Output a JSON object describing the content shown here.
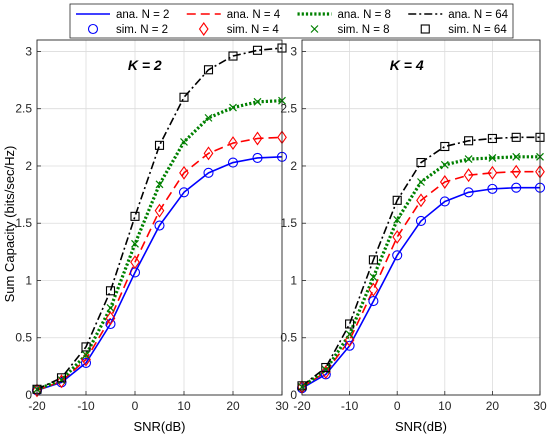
{
  "figure": {
    "ylabel": "Sum Capacity (bits/sec/Hz)",
    "xlabel": "SNR(dB)"
  },
  "legend": {
    "placement": "top-center, spanning both panels",
    "entries": [
      {
        "key": "ana2",
        "label": "ana. N = 2",
        "color": "#0000ff",
        "style": "solid"
      },
      {
        "key": "ana4",
        "label": "ana. N = 4",
        "color": "#ff0000",
        "style": "dashed"
      },
      {
        "key": "ana8",
        "label": "ana. N = 8",
        "color": "#008000",
        "style": "dotted"
      },
      {
        "key": "ana64",
        "label": "ana. N = 64",
        "color": "#000000",
        "style": "dashdot"
      },
      {
        "key": "sim2",
        "label": "sim. N = 2",
        "color": "#0000ff",
        "marker": "circle"
      },
      {
        "key": "sim4",
        "label": "sim. N = 4",
        "color": "#ff0000",
        "marker": "diamond"
      },
      {
        "key": "sim8",
        "label": "sim. N = 8",
        "color": "#008000",
        "marker": "x"
      },
      {
        "key": "sim64",
        "label": "sim. N = 64",
        "color": "#000000",
        "marker": "square"
      }
    ]
  },
  "chart_data": [
    {
      "type": "line",
      "title": "K = 2",
      "xlabel": "SNR(dB)",
      "ylabel": "Sum Capacity (bits/sec/Hz)",
      "xlim": [
        -20,
        30
      ],
      "ylim": [
        0,
        3.1
      ],
      "xticks": [
        "-20",
        "-10",
        "0",
        "10",
        "20",
        "30"
      ],
      "yticks": [
        "0",
        "0.5",
        "1",
        "1.5",
        "2",
        "2.5",
        "3"
      ],
      "grid": true,
      "x": [
        -20,
        -15,
        -10,
        -5,
        0,
        5,
        10,
        15,
        20,
        25,
        30
      ],
      "series": [
        {
          "name": "ana. N = 2",
          "values": [
            0.04,
            0.11,
            0.28,
            0.62,
            1.07,
            1.48,
            1.77,
            1.94,
            2.03,
            2.07,
            2.08
          ]
        },
        {
          "name": "ana. N = 4",
          "values": [
            0.04,
            0.12,
            0.31,
            0.67,
            1.16,
            1.61,
            1.94,
            2.11,
            2.2,
            2.24,
            2.25
          ]
        },
        {
          "name": "ana. N = 8",
          "values": [
            0.05,
            0.13,
            0.35,
            0.76,
            1.32,
            1.84,
            2.21,
            2.42,
            2.51,
            2.56,
            2.57
          ]
        },
        {
          "name": "ana. N = 64",
          "values": [
            0.05,
            0.15,
            0.42,
            0.91,
            1.56,
            2.18,
            2.6,
            2.84,
            2.96,
            3.01,
            3.03
          ]
        },
        {
          "name": "sim. N = 2",
          "values": [
            0.04,
            0.11,
            0.28,
            0.62,
            1.07,
            1.48,
            1.77,
            1.94,
            2.03,
            2.07,
            2.08
          ]
        },
        {
          "name": "sim. N = 4",
          "values": [
            0.04,
            0.12,
            0.31,
            0.67,
            1.16,
            1.61,
            1.94,
            2.11,
            2.2,
            2.24,
            2.25
          ]
        },
        {
          "name": "sim. N = 8",
          "values": [
            0.05,
            0.13,
            0.35,
            0.76,
            1.32,
            1.84,
            2.21,
            2.42,
            2.51,
            2.56,
            2.57
          ]
        },
        {
          "name": "sim. N = 64",
          "values": [
            0.05,
            0.15,
            0.42,
            0.91,
            1.56,
            2.18,
            2.6,
            2.84,
            2.96,
            3.01,
            3.03
          ]
        }
      ]
    },
    {
      "type": "line",
      "title": "K = 4",
      "xlabel": "SNR(dB)",
      "ylabel": "",
      "xlim": [
        -20,
        30
      ],
      "ylim": [
        0,
        3.1
      ],
      "xticks": [
        "-20",
        "-10",
        "0",
        "10",
        "20",
        "30"
      ],
      "yticks": [
        "0",
        "0.5",
        "1",
        "1.5",
        "2",
        "2.5",
        "3"
      ],
      "grid": true,
      "x": [
        -20,
        -15,
        -10,
        -5,
        0,
        5,
        10,
        15,
        20,
        25,
        30
      ],
      "series": [
        {
          "name": "ana. N = 2",
          "values": [
            0.06,
            0.18,
            0.43,
            0.82,
            1.22,
            1.52,
            1.69,
            1.77,
            1.8,
            1.81,
            1.81
          ]
        },
        {
          "name": "ana. N = 4",
          "values": [
            0.07,
            0.2,
            0.48,
            0.92,
            1.38,
            1.7,
            1.86,
            1.92,
            1.94,
            1.95,
            1.95
          ]
        },
        {
          "name": "ana. N = 8",
          "values": [
            0.07,
            0.22,
            0.53,
            1.03,
            1.53,
            1.86,
            2.01,
            2.06,
            2.07,
            2.08,
            2.08
          ]
        },
        {
          "name": "ana. N = 64",
          "values": [
            0.08,
            0.24,
            0.62,
            1.18,
            1.7,
            2.03,
            2.17,
            2.22,
            2.24,
            2.25,
            2.25
          ]
        },
        {
          "name": "sim. N = 2",
          "values": [
            0.06,
            0.18,
            0.43,
            0.82,
            1.22,
            1.52,
            1.69,
            1.77,
            1.8,
            1.81,
            1.81
          ]
        },
        {
          "name": "sim. N = 4",
          "values": [
            0.07,
            0.2,
            0.48,
            0.92,
            1.38,
            1.7,
            1.86,
            1.92,
            1.94,
            1.95,
            1.95
          ]
        },
        {
          "name": "sim. N = 8",
          "values": [
            0.07,
            0.22,
            0.53,
            1.03,
            1.53,
            1.86,
            2.01,
            2.06,
            2.07,
            2.08,
            2.08
          ]
        },
        {
          "name": "sim. N = 64",
          "values": [
            0.08,
            0.24,
            0.62,
            1.18,
            1.7,
            2.03,
            2.17,
            2.22,
            2.24,
            2.25,
            2.25
          ]
        }
      ]
    }
  ]
}
